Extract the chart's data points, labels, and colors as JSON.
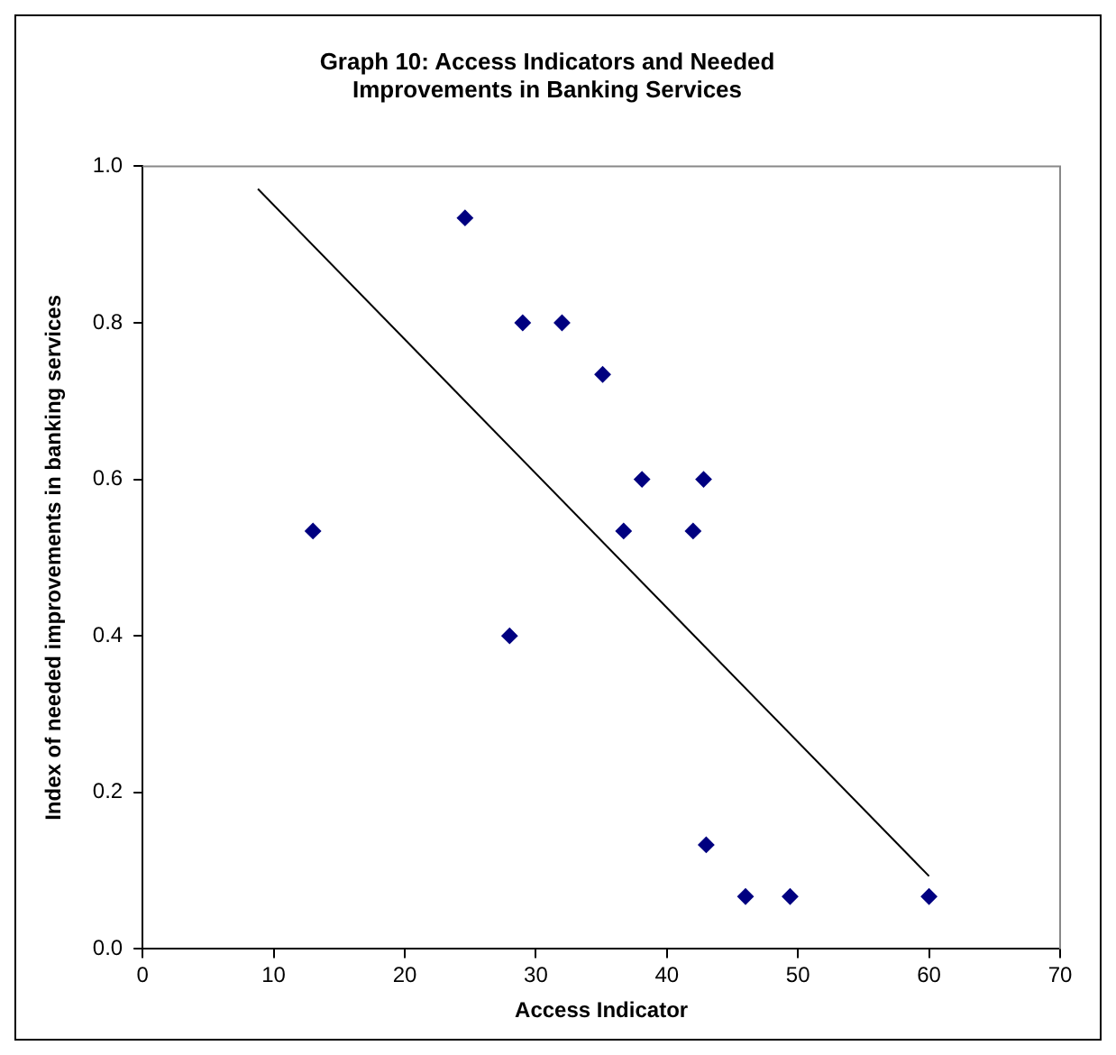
{
  "chart_data": {
    "type": "scatter",
    "title": "Graph 10: Access Indicators and Needed Improvements in Banking Services",
    "xlabel": "Access Indicator",
    "ylabel": "Index of needed improvements in banking services",
    "xlim": [
      0,
      70
    ],
    "xticks": [
      0,
      10,
      20,
      30,
      40,
      50,
      60,
      70
    ],
    "ylim": [
      0,
      1
    ],
    "yticks": [
      {
        "value": 0,
        "label": "0.0"
      },
      {
        "value": 0.2,
        "label": "0.2"
      },
      {
        "value": 0.4,
        "label": "0.4"
      },
      {
        "value": 0.6,
        "label": "0.6"
      },
      {
        "value": 0.8,
        "label": "0.8"
      },
      {
        "value": 1,
        "label": "1.0"
      }
    ],
    "grid": false,
    "legend": false,
    "marker": "diamond",
    "series": [
      {
        "type": "scatter",
        "color": "#000080",
        "x": [
          13.0,
          24.6,
          29.0,
          32.0,
          28.0,
          35.1,
          38.1,
          42.8,
          36.7,
          42.0,
          43.0,
          46.0,
          49.4,
          60.0
        ],
        "values": [
          0.534,
          0.934,
          0.8,
          0.8,
          0.4,
          0.734,
          0.6,
          0.6,
          0.534,
          0.534,
          0.133,
          0.067,
          0.067,
          0.067
        ]
      },
      {
        "type": "line",
        "color": "#000000",
        "marker": "none",
        "x": [
          8.8,
          60.0
        ],
        "values": [
          0.971,
          0.093
        ]
      }
    ]
  }
}
